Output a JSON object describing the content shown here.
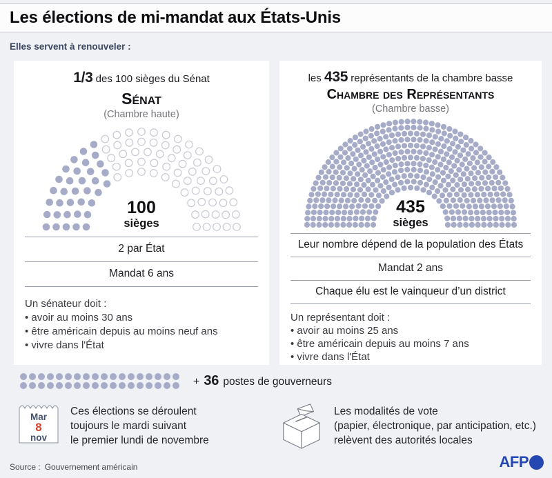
{
  "page": {
    "title": "Les élections de mi-mandat aux États-Unis",
    "subtitle": "Elles servent à renouveler :"
  },
  "colors": {
    "seat_fill": "#a6abc8",
    "seat_empty_stroke": "#c6c9d2",
    "accent_blue": "#2447b2",
    "date_red": "#d8402f",
    "date_navy": "#44536d",
    "icon_stroke": "#7a8089"
  },
  "senate_card": {
    "intro_bold": "1/3",
    "intro_rest": " des 100 sièges du Sénat",
    "name": "Sénat",
    "sub": "(Chambre haute)",
    "facts": [
      "2 par État",
      "Mandat 6 ans"
    ],
    "req_title": "Un sénateur doit :",
    "reqs": [
      "avoir au moins 30 ans",
      "être américain depuis au moins neuf ans",
      "vivre dans l'État"
    ]
  },
  "house_card": {
    "intro_pre": "les ",
    "intro_bold": "435",
    "intro_rest": " représentants de la chambre basse",
    "name": "Chambre des Représentants",
    "sub": "(Chambre basse)",
    "facts": [
      "Leur nombre dépend de la population des États",
      "Mandat 2 ans",
      "Chaque élu est le vainqueur d’un district"
    ],
    "req_title": "Un représentant doit :",
    "reqs": [
      "avoir au moins 25 ans",
      "être américain depuis au moins 7 ans",
      "vivre dans l'État"
    ]
  },
  "governors": {
    "plus": "+",
    "number": "36",
    "label": "postes de gouverneurs"
  },
  "calendar_note": {
    "weekday": "Mar",
    "day": "8",
    "month": "nov",
    "text": [
      "Ces élections se déroulent",
      "toujours le mardi suivant",
      "le premier lundi de novembre"
    ]
  },
  "ballot_note": {
    "text": [
      "Les modalités de vote",
      "(papier, électronique, par anticipation, etc.)",
      "relèvent des autorités locales"
    ]
  },
  "footer": {
    "source_label": "Source :",
    "source_value": "Gouvernement américain",
    "logo": "AFP"
  },
  "chart_data": [
    {
      "id": "senate",
      "type": "parliament",
      "title": "Sénat (Chambre haute)",
      "total_seats": 100,
      "renewed_seats": 35,
      "renewed_fraction": "1/3",
      "rows": 5,
      "center_number": "100",
      "center_word": "sièges",
      "seat_color": "#a6abc8",
      "empty_seat_color": "#ffffff",
      "empty_seat_stroke": "#c6c9d2"
    },
    {
      "id": "house",
      "type": "parliament",
      "title": "Chambre des Représentants (Chambre basse)",
      "total_seats": 435,
      "renewed_seats": 435,
      "rows": 12,
      "center_number": "435",
      "center_word": "sièges",
      "seat_color": "#a6abc8",
      "empty_seat_color": "#ffffff",
      "empty_seat_stroke": "#c6c9d2"
    },
    {
      "id": "governors",
      "type": "dot-grid",
      "total": 36,
      "rows": 2,
      "cols": 18,
      "dot_color": "#a6abc8",
      "label": "+ 36 postes de gouverneurs"
    }
  ]
}
